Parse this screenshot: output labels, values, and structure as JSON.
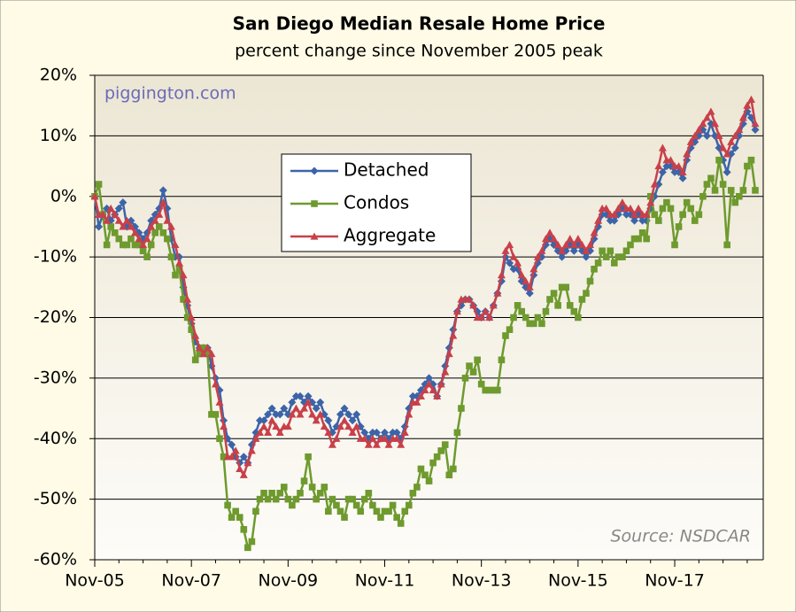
{
  "chart_data": {
    "type": "line",
    "title": "San Diego Median Resale Home Price",
    "subtitle": "percent change since November 2005 peak",
    "annotations": [
      "piggington.com",
      "Source: NSDCAR"
    ],
    "categories": [
      "Nov-05",
      null,
      null,
      null,
      null,
      null,
      null,
      null,
      null,
      null,
      null,
      null,
      null,
      null,
      null,
      null,
      null,
      null,
      null,
      null,
      null,
      null,
      null,
      null,
      "Nov-07",
      null,
      null,
      null,
      null,
      null,
      null,
      null,
      null,
      null,
      null,
      null,
      null,
      null,
      null,
      null,
      null,
      null,
      null,
      null,
      null,
      null,
      null,
      null,
      "Nov-09",
      null,
      null,
      null,
      null,
      null,
      null,
      null,
      null,
      null,
      null,
      null,
      null,
      null,
      null,
      null,
      null,
      null,
      null,
      null,
      null,
      null,
      null,
      null,
      "Nov-11",
      null,
      null,
      null,
      null,
      null,
      null,
      null,
      null,
      null,
      null,
      null,
      null,
      null,
      null,
      null,
      null,
      null,
      null,
      null,
      null,
      null,
      null,
      null,
      "Nov-13",
      null,
      null,
      null,
      null,
      null,
      null,
      null,
      null,
      null,
      null,
      null,
      null,
      null,
      null,
      null,
      null,
      null,
      null,
      null,
      null,
      null,
      null,
      null,
      "Nov-15",
      null,
      null,
      null,
      null,
      null,
      null,
      null,
      null,
      null,
      null,
      null,
      null,
      null,
      null,
      null,
      null,
      null,
      null,
      null,
      null,
      null,
      null,
      null,
      "Nov-17",
      null,
      null,
      null,
      null,
      null,
      null,
      null,
      null,
      null,
      null,
      null,
      null,
      null,
      null,
      null,
      null,
      null,
      null,
      null,
      null
    ],
    "series": [
      {
        "name": "Detached",
        "color": "#3c64a8",
        "marker": "diamond",
        "values": [
          0,
          -5,
          -3,
          -2,
          -4,
          -3,
          -2,
          -1,
          -5,
          -4,
          -5,
          -6,
          -7,
          -6,
          -4,
          -3,
          -2,
          1,
          -2,
          -7,
          -10,
          -10,
          -15,
          -18,
          -21,
          -24,
          -25,
          -25,
          -25,
          -28,
          -30,
          -32,
          -37,
          -40,
          -41,
          -43,
          -44,
          -43,
          -44,
          -41,
          -39,
          -37,
          -37,
          -36,
          -35,
          -36,
          -36,
          -35,
          -36,
          -34,
          -33,
          -33,
          -34,
          -33,
          -34,
          -35,
          -34,
          -36,
          -37,
          -39,
          -38,
          -36,
          -35,
          -36,
          -37,
          -36,
          -38,
          -39,
          -40,
          -39,
          -39,
          -40,
          -39,
          -40,
          -39,
          -39,
          -40,
          -38,
          -35,
          -33,
          -33,
          -32,
          -31,
          -30,
          -31,
          -33,
          -31,
          -28,
          -25,
          -22,
          -19,
          -18,
          -17,
          -17,
          -18,
          -19,
          -20,
          -19,
          -20,
          -18,
          -16,
          -14,
          -10,
          -11,
          -12,
          -12,
          -14,
          -15,
          -16,
          -13,
          -11,
          -10,
          -8,
          -7,
          -8,
          -9,
          -10,
          -9,
          -8,
          -9,
          -8,
          -9,
          -10,
          -9,
          -7,
          -5,
          -3,
          -3,
          -4,
          -4,
          -3,
          -2,
          -3,
          -3,
          -4,
          -3,
          -4,
          -4,
          -2,
          0,
          2,
          4,
          5,
          5,
          4,
          4,
          3,
          6,
          8,
          9,
          10,
          11,
          10,
          12,
          10,
          8,
          6,
          4,
          7,
          8,
          10,
          12,
          14,
          13,
          11
        ]
      },
      {
        "name": "Condos",
        "color": "#6e9a2e",
        "marker": "square",
        "values": [
          0,
          2,
          -3,
          -8,
          -5,
          -6,
          -7,
          -8,
          -8,
          -7,
          -8,
          -8,
          -9,
          -10,
          -8,
          -6,
          -5,
          -6,
          -7,
          -10,
          -13,
          -12,
          -17,
          -20,
          -22,
          -27,
          -26,
          -25,
          -26,
          -36,
          -36,
          -40,
          -43,
          -51,
          -53,
          -52,
          -53,
          -55,
          -58,
          -57,
          -52,
          -50,
          -49,
          -50,
          -49,
          -50,
          -49,
          -48,
          -50,
          -51,
          -50,
          -49,
          -47,
          -43,
          -48,
          -50,
          -49,
          -48,
          -52,
          -50,
          -51,
          -52,
          -53,
          -50,
          -50,
          -51,
          -52,
          -50,
          -49,
          -51,
          -52,
          -53,
          -52,
          -52,
          -51,
          -53,
          -54,
          -52,
          -51,
          -49,
          -48,
          -45,
          -46,
          -47,
          -44,
          -43,
          -42,
          -41,
          -46,
          -45,
          -39,
          -35,
          -30,
          -28,
          -29,
          -27,
          -31,
          -32,
          -32,
          -32,
          -32,
          -27,
          -23,
          -22,
          -20,
          -18,
          -19,
          -20,
          -21,
          -21,
          -20,
          -21,
          -19,
          -17,
          -16,
          -18,
          -15,
          -15,
          -18,
          -19,
          -20,
          -17,
          -16,
          -14,
          -12,
          -11,
          -9,
          -10,
          -9,
          -11,
          -10,
          -10,
          -9,
          -8,
          -7,
          -7,
          -6,
          -7,
          0,
          -3,
          -4,
          -2,
          -1,
          -2,
          -8,
          -5,
          -3,
          -1,
          -2,
          -4,
          -3,
          0,
          2,
          3,
          1,
          6,
          2,
          -8,
          1,
          -1,
          0,
          1,
          5,
          6,
          1
        ]
      },
      {
        "name": "Aggregate",
        "color": "#c8404a",
        "marker": "triangle",
        "values": [
          0,
          -3,
          -3,
          -4,
          -2,
          -3,
          -4,
          -5,
          -4,
          -5,
          -6,
          -7,
          -8,
          -7,
          -5,
          -4,
          -3,
          -1,
          -4,
          -5,
          -8,
          -11,
          -13,
          -17,
          -20,
          -23,
          -25,
          -26,
          -25,
          -26,
          -31,
          -34,
          -38,
          -43,
          -43,
          -42,
          -45,
          -46,
          -44,
          -42,
          -40,
          -39,
          -38,
          -39,
          -37,
          -38,
          -39,
          -38,
          -38,
          -36,
          -35,
          -36,
          -35,
          -34,
          -36,
          -37,
          -36,
          -38,
          -39,
          -41,
          -40,
          -38,
          -37,
          -38,
          -39,
          -38,
          -40,
          -40,
          -41,
          -40,
          -41,
          -40,
          -40,
          -41,
          -40,
          -40,
          -41,
          -39,
          -36,
          -34,
          -34,
          -33,
          -32,
          -31,
          -32,
          -33,
          -31,
          -29,
          -26,
          -23,
          -19,
          -17,
          -17,
          -17,
          -18,
          -20,
          -20,
          -19,
          -20,
          -18,
          -16,
          -13,
          -9,
          -8,
          -10,
          -11,
          -13,
          -14,
          -15,
          -12,
          -10,
          -9,
          -7,
          -6,
          -7,
          -8,
          -9,
          -8,
          -7,
          -8,
          -7,
          -8,
          -9,
          -8,
          -6,
          -4,
          -2,
          -2,
          -3,
          -3,
          -2,
          -1,
          -2,
          -2,
          -3,
          -2,
          -3,
          -3,
          -1,
          2,
          5,
          8,
          6,
          6,
          5,
          5,
          4,
          7,
          9,
          10,
          11,
          12,
          13,
          14,
          12,
          10,
          8,
          7,
          9,
          10,
          11,
          13,
          15,
          16,
          12
        ]
      }
    ],
    "ylim": [
      -60,
      20
    ],
    "yticks": [
      {
        "value": -60,
        "label": "-60%"
      },
      {
        "value": -50,
        "label": "-50%"
      },
      {
        "value": -40,
        "label": "-40%"
      },
      {
        "value": -30,
        "label": "-30%"
      },
      {
        "value": -20,
        "label": "-20%"
      },
      {
        "value": -10,
        "label": "-10%"
      },
      {
        "value": 0,
        "label": "0%"
      },
      {
        "value": 10,
        "label": "10%"
      },
      {
        "value": 20,
        "label": "20%"
      }
    ],
    "grid": true
  }
}
